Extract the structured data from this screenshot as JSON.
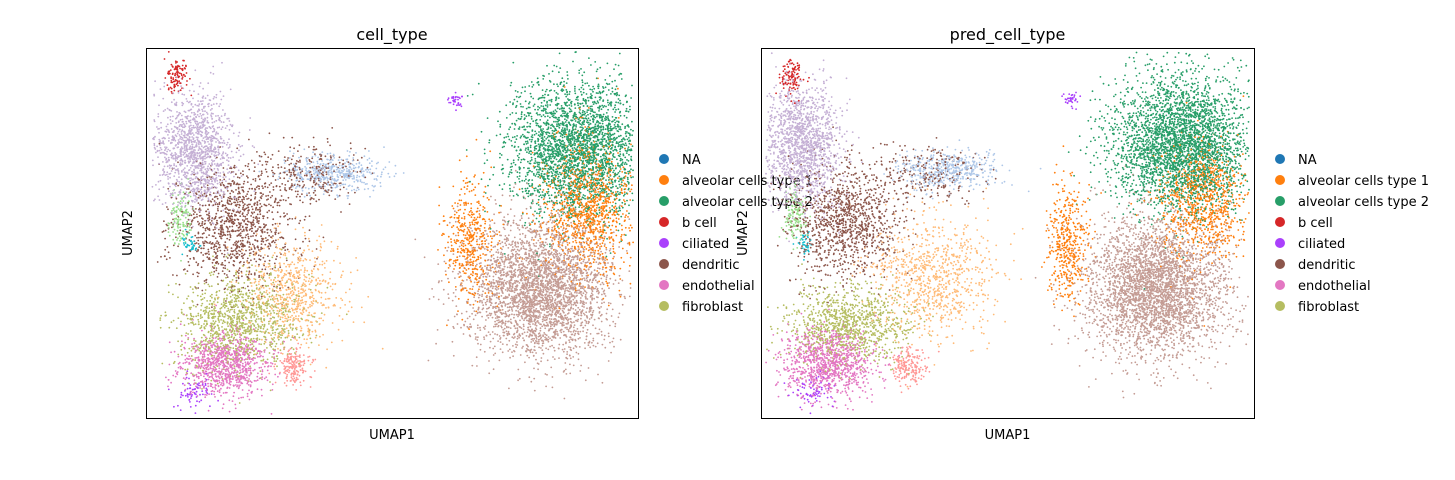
{
  "chart_data": [
    {
      "type": "scatter",
      "title": "cell_type",
      "xlabel": "UMAP1",
      "ylabel": "UMAP2",
      "grid": false,
      "legend_position": "right",
      "legend": [
        {
          "label": "NA",
          "color": "#1f77b4"
        },
        {
          "label": "alveolar cells type 1",
          "color": "#ff7f0e"
        },
        {
          "label": "alveolar cells type 2",
          "color": "#279e68"
        },
        {
          "label": "b cell",
          "color": "#d62728"
        },
        {
          "label": "ciliated",
          "color": "#aa40fc"
        },
        {
          "label": "dendritic",
          "color": "#8c564b"
        },
        {
          "label": "endothelial",
          "color": "#e377c2"
        },
        {
          "label": "fibroblast",
          "color": "#b5bd61"
        }
      ],
      "clusters": [
        {
          "category": "b cell",
          "color": "#d62728",
          "center": [
            0.064,
            0.075
          ],
          "spread": [
            0.012,
            0.025
          ],
          "count": 110
        },
        {
          "category": "ciliated",
          "color": "#aa40fc",
          "center": [
            0.63,
            0.14
          ],
          "spread": [
            0.008,
            0.01
          ],
          "count": 35
        },
        {
          "category": "ciliated",
          "color": "#aa40fc",
          "center": [
            0.1,
            0.93
          ],
          "spread": [
            0.018,
            0.022
          ],
          "count": 70
        },
        {
          "category": "alveolar cells type 2",
          "color": "#279e68",
          "center": [
            0.88,
            0.27
          ],
          "spread": [
            0.07,
            0.09
          ],
          "count": 2800
        },
        {
          "category": "alveolar cells type 1",
          "color": "#ff7f0e",
          "center": [
            0.9,
            0.44
          ],
          "spread": [
            0.045,
            0.09
          ],
          "count": 1100
        },
        {
          "category": "alveolar cells type 1",
          "color": "#ff7f0e",
          "center": [
            0.66,
            0.52
          ],
          "spread": [
            0.025,
            0.08
          ],
          "count": 450
        },
        {
          "category": "dendritic",
          "color": "#8c564b",
          "center": [
            0.18,
            0.48
          ],
          "spread": [
            0.06,
            0.08
          ],
          "count": 1100
        },
        {
          "category": "dendritic",
          "color": "#8c564b",
          "center": [
            0.34,
            0.34
          ],
          "spread": [
            0.05,
            0.04
          ],
          "count": 260
        },
        {
          "category": "endothelial",
          "color": "#e377c2",
          "center": [
            0.16,
            0.85
          ],
          "spread": [
            0.045,
            0.045
          ],
          "count": 900
        },
        {
          "category": "fibroblast",
          "color": "#b5bd61",
          "center": [
            0.19,
            0.74
          ],
          "spread": [
            0.065,
            0.065
          ],
          "count": 1100
        }
      ]
    },
    {
      "type": "scatter",
      "title": "pred_cell_type",
      "xlabel": "UMAP1",
      "ylabel": "UMAP2",
      "grid": false,
      "legend_position": "right",
      "legend": [
        {
          "label": "NA",
          "color": "#1f77b4"
        },
        {
          "label": "alveolar cells type 1",
          "color": "#ff7f0e"
        },
        {
          "label": "alveolar cells type 2",
          "color": "#279e68"
        },
        {
          "label": "b cell",
          "color": "#d62728"
        },
        {
          "label": "ciliated",
          "color": "#aa40fc"
        },
        {
          "label": "dendritic",
          "color": "#8c564b"
        },
        {
          "label": "endothelial",
          "color": "#e377c2"
        },
        {
          "label": "fibroblast",
          "color": "#b5bd61"
        }
      ],
      "clusters": [
        {
          "category": "b cell",
          "color": "#d62728",
          "center": [
            0.064,
            0.075
          ],
          "spread": [
            0.012,
            0.025
          ],
          "count": 110
        },
        {
          "category": "ciliated",
          "color": "#aa40fc",
          "center": [
            0.63,
            0.14
          ],
          "spread": [
            0.008,
            0.01
          ],
          "count": 35
        },
        {
          "category": "ciliated",
          "color": "#aa40fc",
          "center": [
            0.1,
            0.93
          ],
          "spread": [
            0.018,
            0.022
          ],
          "count": 70
        },
        {
          "category": "alveolar cells type 2",
          "color": "#279e68",
          "center": [
            0.85,
            0.26
          ],
          "spread": [
            0.07,
            0.09
          ],
          "count": 3300
        },
        {
          "category": "alveolar cells type 1",
          "color": "#ff7f0e",
          "center": [
            0.9,
            0.42
          ],
          "spread": [
            0.045,
            0.08
          ],
          "count": 900
        },
        {
          "category": "alveolar cells type 1",
          "color": "#ff7f0e",
          "center": [
            0.62,
            0.52
          ],
          "spread": [
            0.02,
            0.08
          ],
          "count": 420
        },
        {
          "category": "dendritic",
          "color": "#8c564b",
          "center": [
            0.17,
            0.47
          ],
          "spread": [
            0.055,
            0.075
          ],
          "count": 1100
        },
        {
          "category": "dendritic",
          "color": "#8c564b",
          "center": [
            0.34,
            0.34
          ],
          "spread": [
            0.05,
            0.04
          ],
          "count": 240
        },
        {
          "category": "endothelial",
          "color": "#e377c2",
          "center": [
            0.14,
            0.85
          ],
          "spread": [
            0.045,
            0.045
          ],
          "count": 1000
        },
        {
          "category": "fibroblast",
          "color": "#b5bd61",
          "center": [
            0.18,
            0.75
          ],
          "spread": [
            0.06,
            0.05
          ],
          "count": 1000
        }
      ]
    }
  ],
  "extra_clusters": [
    [
      {
        "color": "#c5b0d5",
        "center": [
          0.1,
          0.28
        ],
        "spread": [
          0.04,
          0.08
        ],
        "count": 1300
      },
      {
        "color": "#aec7e8",
        "center": [
          0.38,
          0.34
        ],
        "spread": [
          0.05,
          0.025
        ],
        "count": 450
      },
      {
        "color": "#98df8a",
        "center": [
          0.07,
          0.46
        ],
        "spread": [
          0.012,
          0.04
        ],
        "count": 130
      },
      {
        "color": "#17becf",
        "center": [
          0.09,
          0.53
        ],
        "spread": [
          0.008,
          0.015
        ],
        "count": 40
      },
      {
        "color": "#ffbb78",
        "center": [
          0.3,
          0.66
        ],
        "spread": [
          0.05,
          0.07
        ],
        "count": 650
      },
      {
        "color": "#ff9896",
        "center": [
          0.3,
          0.86
        ],
        "spread": [
          0.018,
          0.025
        ],
        "count": 180
      },
      {
        "color": "#c49c94",
        "center": [
          0.8,
          0.65
        ],
        "spread": [
          0.07,
          0.09
        ],
        "count": 3200
      }
    ],
    [
      {
        "color": "#c5b0d5",
        "center": [
          0.08,
          0.26
        ],
        "spread": [
          0.04,
          0.08
        ],
        "count": 1500
      },
      {
        "color": "#aec7e8",
        "center": [
          0.38,
          0.33
        ],
        "spread": [
          0.05,
          0.025
        ],
        "count": 450
      },
      {
        "color": "#98df8a",
        "center": [
          0.07,
          0.45
        ],
        "spread": [
          0.012,
          0.04
        ],
        "count": 130
      },
      {
        "color": "#17becf",
        "center": [
          0.09,
          0.53
        ],
        "spread": [
          0.008,
          0.015
        ],
        "count": 40
      },
      {
        "color": "#ffbb78",
        "center": [
          0.35,
          0.62
        ],
        "spread": [
          0.06,
          0.08
        ],
        "count": 850
      },
      {
        "color": "#ff9896",
        "center": [
          0.3,
          0.86
        ],
        "spread": [
          0.018,
          0.025
        ],
        "count": 180
      },
      {
        "color": "#c49c94",
        "center": [
          0.8,
          0.65
        ],
        "spread": [
          0.07,
          0.09
        ],
        "count": 3300
      }
    ]
  ]
}
